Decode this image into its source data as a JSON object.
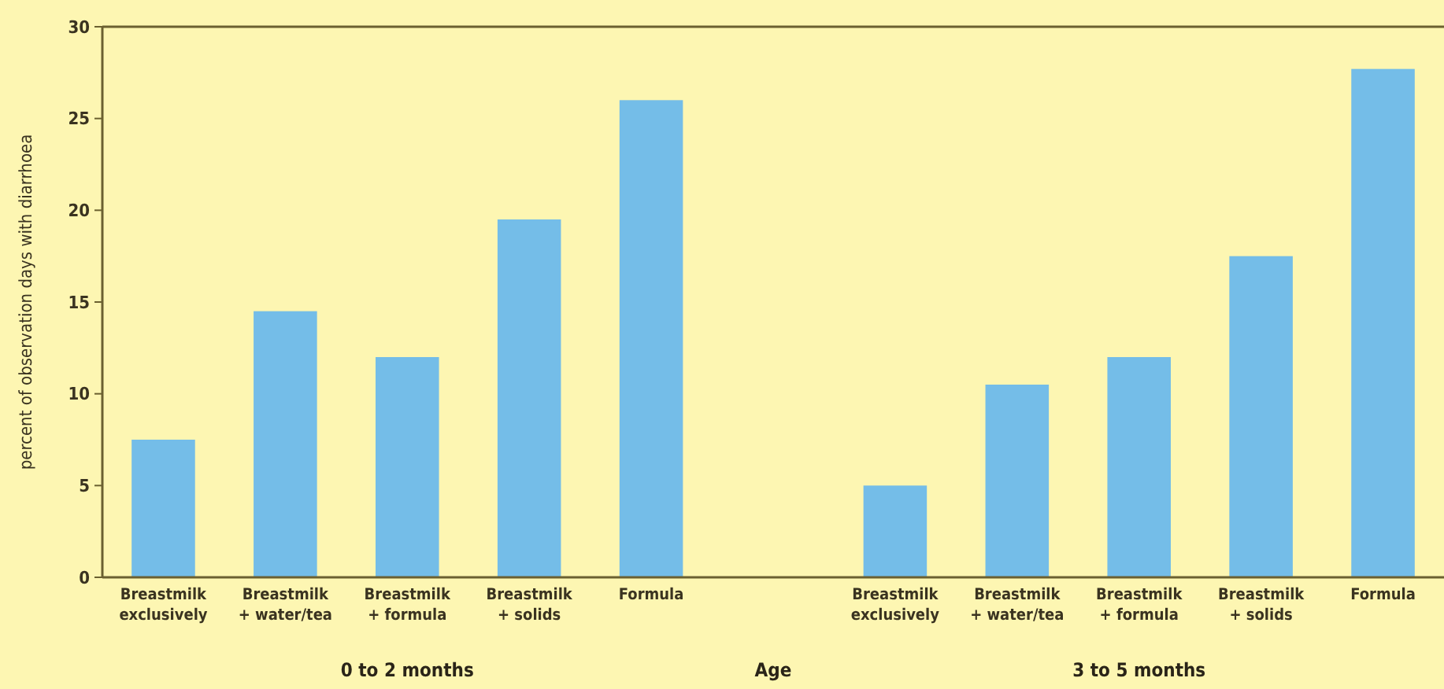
{
  "chart_data": {
    "type": "bar",
    "ylabel": "percent of observation days with diarrhoea",
    "xlabel": "Age",
    "categories": [
      "Breastmilk exclusively",
      "Breastmilk + water/tea",
      "Breastmilk + formula",
      "Breastmilk + solids",
      "Formula",
      null,
      "Breastmilk exclusively",
      "Breastmilk + water/tea",
      "Breastmilk + formula",
      "Breastmilk + solids",
      "Formula"
    ],
    "values": [
      7.5,
      14.5,
      12,
      19.5,
      26,
      null,
      5,
      10.5,
      12,
      17.5,
      27.7
    ],
    "color": "#74bde8",
    "ylim": [
      0,
      30
    ],
    "yticks": [
      0,
      5,
      10,
      15,
      20,
      25,
      30
    ],
    "grid": false,
    "annotations": [
      "0 to 2 months",
      "3 to 5 months"
    ]
  }
}
